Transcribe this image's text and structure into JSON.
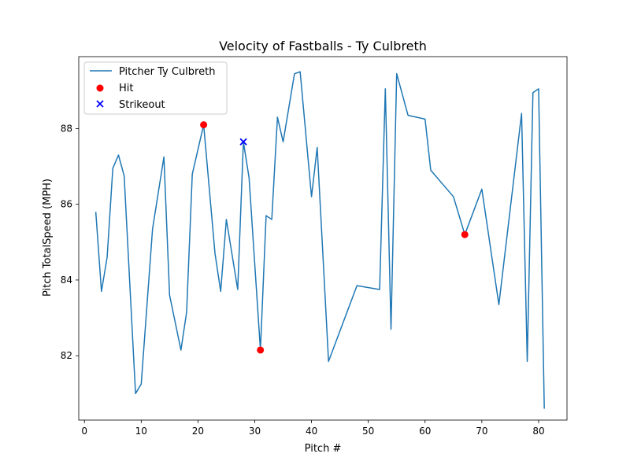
{
  "chart_data": {
    "type": "line",
    "title": "Velocity of Fastballs - Ty Culbreth",
    "xlabel": "Pitch #",
    "ylabel": "Pitch TotalSpeed (MPH)",
    "xlim": [
      -1,
      85
    ],
    "ylim": [
      80.3,
      89.9
    ],
    "xticks": [
      0,
      10,
      20,
      30,
      40,
      50,
      60,
      70,
      80
    ],
    "yticks": [
      82,
      84,
      86,
      88
    ],
    "grid": false,
    "legend_position": "top-left",
    "series": [
      {
        "name": "Pitcher Ty Culbreth",
        "color": "#1f77b4",
        "x": [
          2,
          3,
          4,
          5,
          6,
          7,
          9,
          10,
          12,
          14,
          15,
          17,
          18,
          19,
          21,
          23,
          24,
          25,
          27,
          28,
          29,
          31,
          32,
          33,
          34,
          35,
          37,
          38,
          40,
          41,
          43,
          48,
          52,
          53,
          54,
          55,
          57,
          60,
          61,
          65,
          67,
          70,
          73,
          77,
          78,
          79,
          80,
          81
        ],
        "y": [
          85.8,
          83.7,
          84.6,
          86.95,
          87.3,
          86.75,
          81.0,
          81.25,
          85.35,
          87.25,
          83.6,
          82.15,
          83.15,
          86.8,
          88.1,
          84.7,
          83.7,
          85.6,
          83.75,
          87.65,
          86.7,
          82.15,
          85.7,
          85.6,
          88.3,
          87.65,
          89.45,
          89.5,
          86.2,
          87.5,
          81.85,
          83.85,
          83.75,
          89.05,
          82.7,
          89.45,
          88.35,
          88.25,
          86.9,
          86.2,
          85.2,
          86.4,
          83.35,
          88.4,
          81.85,
          88.95,
          89.05,
          80.6
        ]
      }
    ],
    "points": [
      {
        "name": "Hit",
        "marker": "circle",
        "color": "#ff0000",
        "x": [
          21,
          31,
          67
        ],
        "y": [
          88.1,
          82.15,
          85.2
        ]
      },
      {
        "name": "Strikeout",
        "marker": "x",
        "color": "#0000ff",
        "x": [
          28
        ],
        "y": [
          87.65
        ]
      }
    ]
  }
}
